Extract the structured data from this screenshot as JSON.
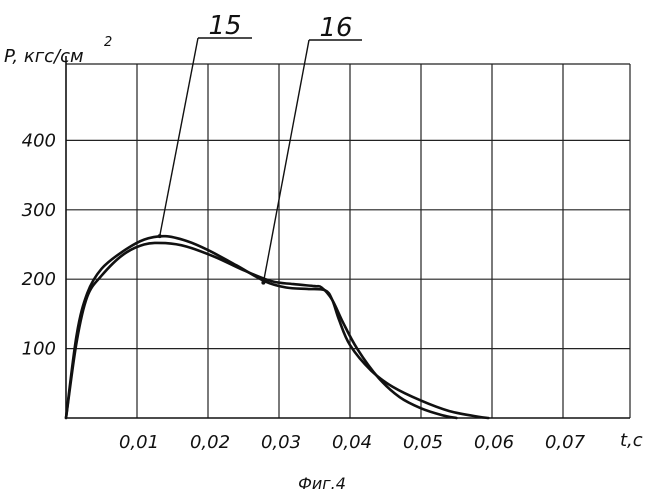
{
  "caption": "Фиг.4",
  "chart_data": {
    "type": "line",
    "xlabel": "t,c",
    "ylabel": "P, кгс/см",
    "ylabel_sup": "2",
    "xlim": [
      0,
      0.08
    ],
    "ylim": [
      0,
      500
    ],
    "grid": true,
    "x_ticks": [
      0.01,
      0.02,
      0.03,
      0.04,
      0.05,
      0.06,
      0.07
    ],
    "x_tick_labels": [
      "0,01",
      "0,02",
      "0,03",
      "0,04",
      "0,05",
      "0,06",
      "0,07"
    ],
    "y_ticks": [
      100,
      200,
      300,
      400
    ],
    "y_tick_labels": [
      "100",
      "200",
      "300",
      "400"
    ],
    "series": [
      {
        "name": "15",
        "x": [
          0,
          0.0015,
          0.003,
          0.005,
          0.008,
          0.011,
          0.014,
          0.017,
          0.02,
          0.024,
          0.028,
          0.031,
          0.034,
          0.0365,
          0.0375,
          0.0385,
          0.04,
          0.043,
          0.046,
          0.05,
          0.054,
          0.058,
          0.0595
        ],
        "y": [
          0,
          120,
          180,
          215,
          240,
          257,
          262,
          255,
          242,
          220,
          197,
          188,
          186,
          184,
          170,
          140,
          105,
          68,
          45,
          25,
          10,
          2,
          0
        ]
      },
      {
        "name": "16",
        "x": [
          0,
          0.0015,
          0.003,
          0.005,
          0.008,
          0.011,
          0.014,
          0.017,
          0.021,
          0.025,
          0.029,
          0.032,
          0.035,
          0.036,
          0.0375,
          0.039,
          0.041,
          0.044,
          0.047,
          0.05,
          0.053,
          0.055
        ],
        "y": [
          0,
          110,
          175,
          205,
          235,
          250,
          252,
          247,
          232,
          213,
          197,
          193,
          190,
          188,
          170,
          138,
          100,
          58,
          30,
          14,
          4,
          0
        ]
      }
    ],
    "callouts": [
      {
        "label": "15",
        "series": 0,
        "x": 0.0132,
        "y": 262
      },
      {
        "label": "16",
        "series": 1,
        "x": 0.0278,
        "y": 195
      }
    ]
  }
}
